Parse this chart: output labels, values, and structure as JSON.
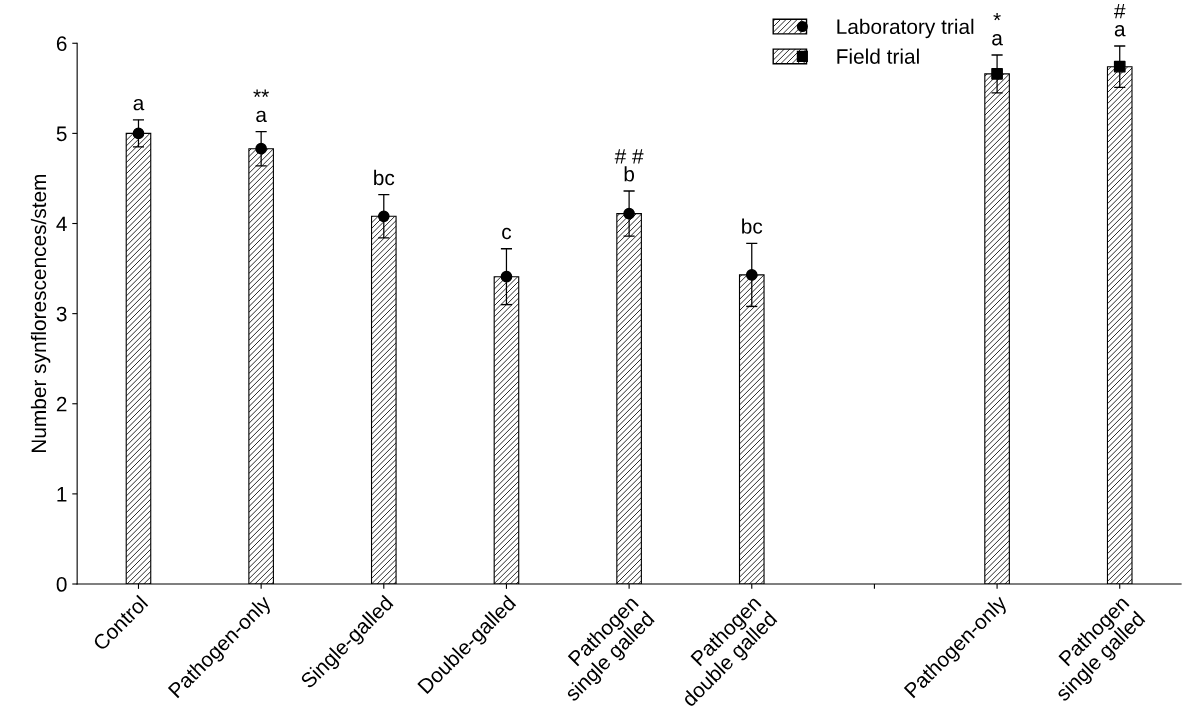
{
  "chart_data": {
    "type": "bar",
    "ylabel": "Number synflorescences/stem",
    "categories": [
      "Control",
      "Pathogen-only",
      "Single-galled",
      "Double-galled",
      "Pathogen\nsingle galled",
      "Pathogen\ndouble galled",
      null,
      "Pathogen-only",
      "Pathogen\nsingle galled"
    ],
    "series": [
      {
        "name": "Laboratory trial",
        "color": "#000000",
        "marker": "circle",
        "values": [
          5.0,
          4.83,
          4.08,
          3.41,
          4.11,
          3.43,
          null,
          null,
          null
        ],
        "errors": [
          0.15,
          0.19,
          0.24,
          0.31,
          0.25,
          0.35,
          null,
          null,
          null
        ],
        "value_labels": [
          "a",
          "**\na",
          "bc",
          "c",
          "# #\nb",
          "bc",
          null,
          null,
          null
        ]
      },
      {
        "name": "Field trial",
        "color": "#000000",
        "marker": "square",
        "values": [
          null,
          null,
          null,
          null,
          null,
          null,
          null,
          5.66,
          5.74
        ],
        "errors": [
          null,
          null,
          null,
          null,
          null,
          null,
          null,
          0.21,
          0.23
        ],
        "value_labels": [
          null,
          null,
          null,
          null,
          null,
          null,
          null,
          "*\na",
          "#\na"
        ]
      },
      {
        "type": "scatter",
        "color": "#000000",
        "marker": "circle",
        "values": [
          5.0,
          4.83,
          4.08,
          3.41,
          4.11,
          3.43,
          null,
          null,
          null
        ]
      },
      {
        "type": "scatter",
        "color": "#000000",
        "marker": "square",
        "values": [
          null,
          null,
          null,
          null,
          null,
          null,
          null,
          5.66,
          5.74
        ]
      }
    ],
    "ylim": [
      0,
      6
    ],
    "yticks": [
      0,
      1,
      2,
      3,
      4,
      5,
      6
    ],
    "grid": false,
    "legend": "top right"
  }
}
